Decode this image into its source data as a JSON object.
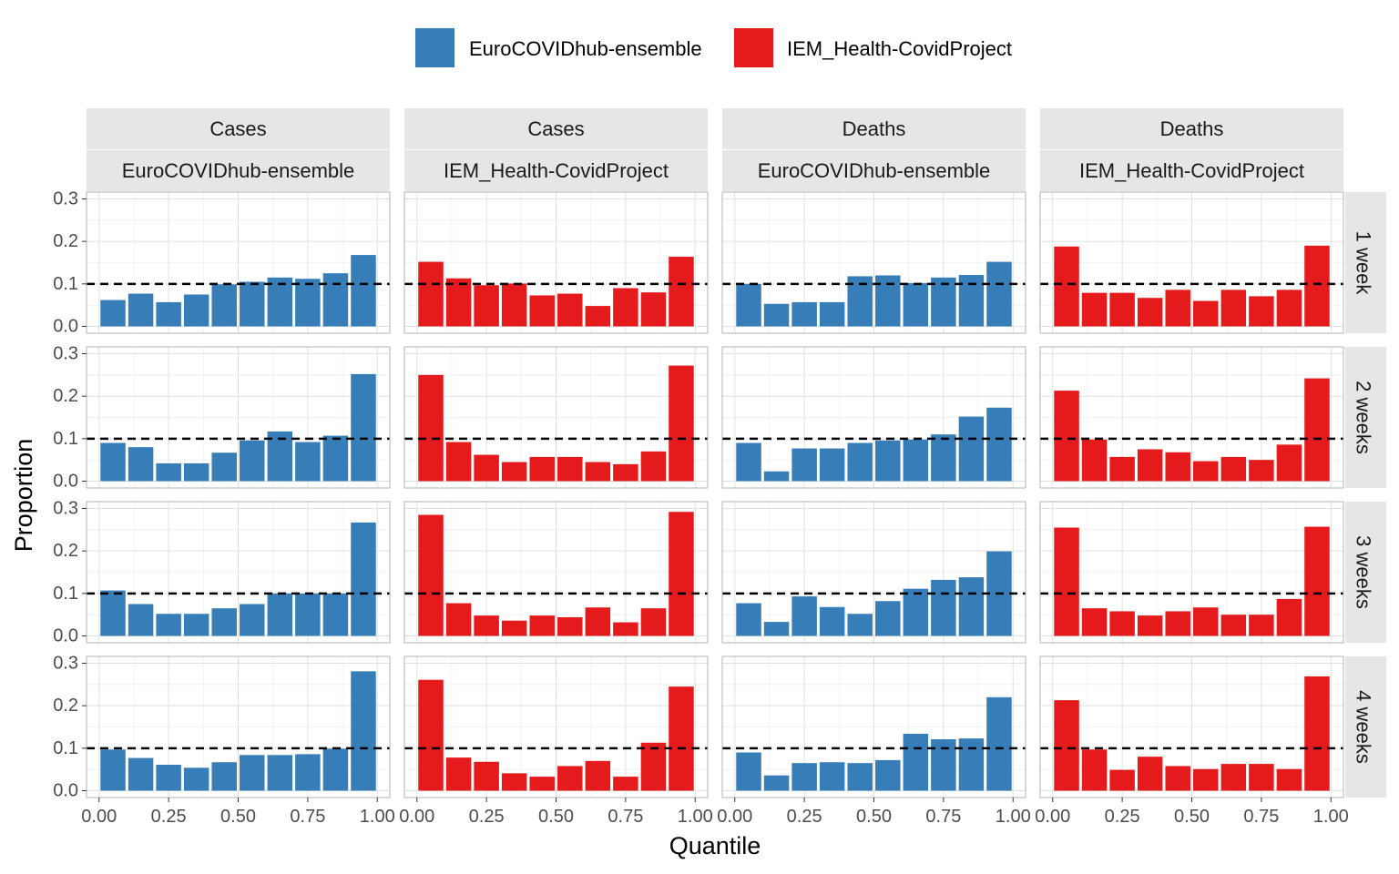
{
  "chart_data": {
    "type": "bar",
    "xlabel": "Quantile",
    "ylabel": "Proportion",
    "xlim": [
      0,
      1
    ],
    "ylim": [
      0,
      0.3
    ],
    "x_ticks": [
      "0.00",
      "0.25",
      "0.50",
      "0.75",
      "1.00"
    ],
    "x_tick_values": [
      0,
      0.25,
      0.5,
      0.75,
      1.0
    ],
    "y_ticks": [
      "0.0",
      "0.1",
      "0.2",
      "0.3"
    ],
    "y_tick_values": [
      0,
      0.1,
      0.2,
      0.3
    ],
    "bin_centers": [
      0.05,
      0.15,
      0.25,
      0.35,
      0.45,
      0.55,
      0.65,
      0.75,
      0.85,
      0.95
    ],
    "reference_line": 0.1,
    "grid": true,
    "legend_position": "top",
    "legend": [
      {
        "name": "EuroCOVIDhub-ensemble",
        "color": "#377eb8"
      },
      {
        "name": "IEM_Health-CovidProject",
        "color": "#e41a1c"
      }
    ],
    "columns": [
      {
        "target": "Cases",
        "model": "EuroCOVIDhub-ensemble",
        "color": "#377eb8"
      },
      {
        "target": "Cases",
        "model": "IEM_Health-CovidProject",
        "color": "#e41a1c"
      },
      {
        "target": "Deaths",
        "model": "EuroCOVIDhub-ensemble",
        "color": "#377eb8"
      },
      {
        "target": "Deaths",
        "model": "IEM_Health-CovidProject",
        "color": "#e41a1c"
      }
    ],
    "rows": [
      "1 week",
      "2 weeks",
      "3 weeks",
      "4 weeks"
    ],
    "values": [
      [
        [
          0.062,
          0.077,
          0.057,
          0.075,
          0.099,
          0.105,
          0.115,
          0.112,
          0.125,
          0.168
        ],
        [
          0.152,
          0.113,
          0.097,
          0.101,
          0.073,
          0.077,
          0.048,
          0.09,
          0.08,
          0.164
        ],
        [
          0.1,
          0.053,
          0.057,
          0.057,
          0.118,
          0.12,
          0.102,
          0.115,
          0.121,
          0.152
        ],
        [
          0.188,
          0.079,
          0.079,
          0.067,
          0.086,
          0.06,
          0.086,
          0.071,
          0.086,
          0.19
        ]
      ],
      [
        [
          0.09,
          0.08,
          0.042,
          0.042,
          0.067,
          0.096,
          0.117,
          0.092,
          0.107,
          0.252
        ],
        [
          0.25,
          0.092,
          0.062,
          0.045,
          0.057,
          0.057,
          0.045,
          0.04,
          0.07,
          0.272
        ],
        [
          0.09,
          0.023,
          0.077,
          0.077,
          0.09,
          0.096,
          0.098,
          0.11,
          0.152,
          0.173
        ],
        [
          0.213,
          0.098,
          0.057,
          0.075,
          0.068,
          0.047,
          0.057,
          0.05,
          0.086,
          0.242
        ]
      ],
      [
        [
          0.107,
          0.075,
          0.052,
          0.052,
          0.065,
          0.075,
          0.1,
          0.1,
          0.1,
          0.267
        ],
        [
          0.285,
          0.077,
          0.048,
          0.036,
          0.048,
          0.044,
          0.067,
          0.032,
          0.065,
          0.292
        ],
        [
          0.077,
          0.033,
          0.093,
          0.068,
          0.052,
          0.082,
          0.111,
          0.132,
          0.138,
          0.199
        ],
        [
          0.255,
          0.065,
          0.058,
          0.048,
          0.058,
          0.067,
          0.05,
          0.05,
          0.087,
          0.257
        ]
      ],
      [
        [
          0.097,
          0.077,
          0.061,
          0.054,
          0.067,
          0.084,
          0.084,
          0.086,
          0.099,
          0.281
        ],
        [
          0.261,
          0.078,
          0.068,
          0.041,
          0.033,
          0.058,
          0.07,
          0.033,
          0.113,
          0.245
        ],
        [
          0.09,
          0.036,
          0.065,
          0.067,
          0.065,
          0.072,
          0.134,
          0.121,
          0.123,
          0.22
        ],
        [
          0.213,
          0.097,
          0.049,
          0.08,
          0.058,
          0.051,
          0.063,
          0.063,
          0.051,
          0.269
        ]
      ]
    ]
  }
}
